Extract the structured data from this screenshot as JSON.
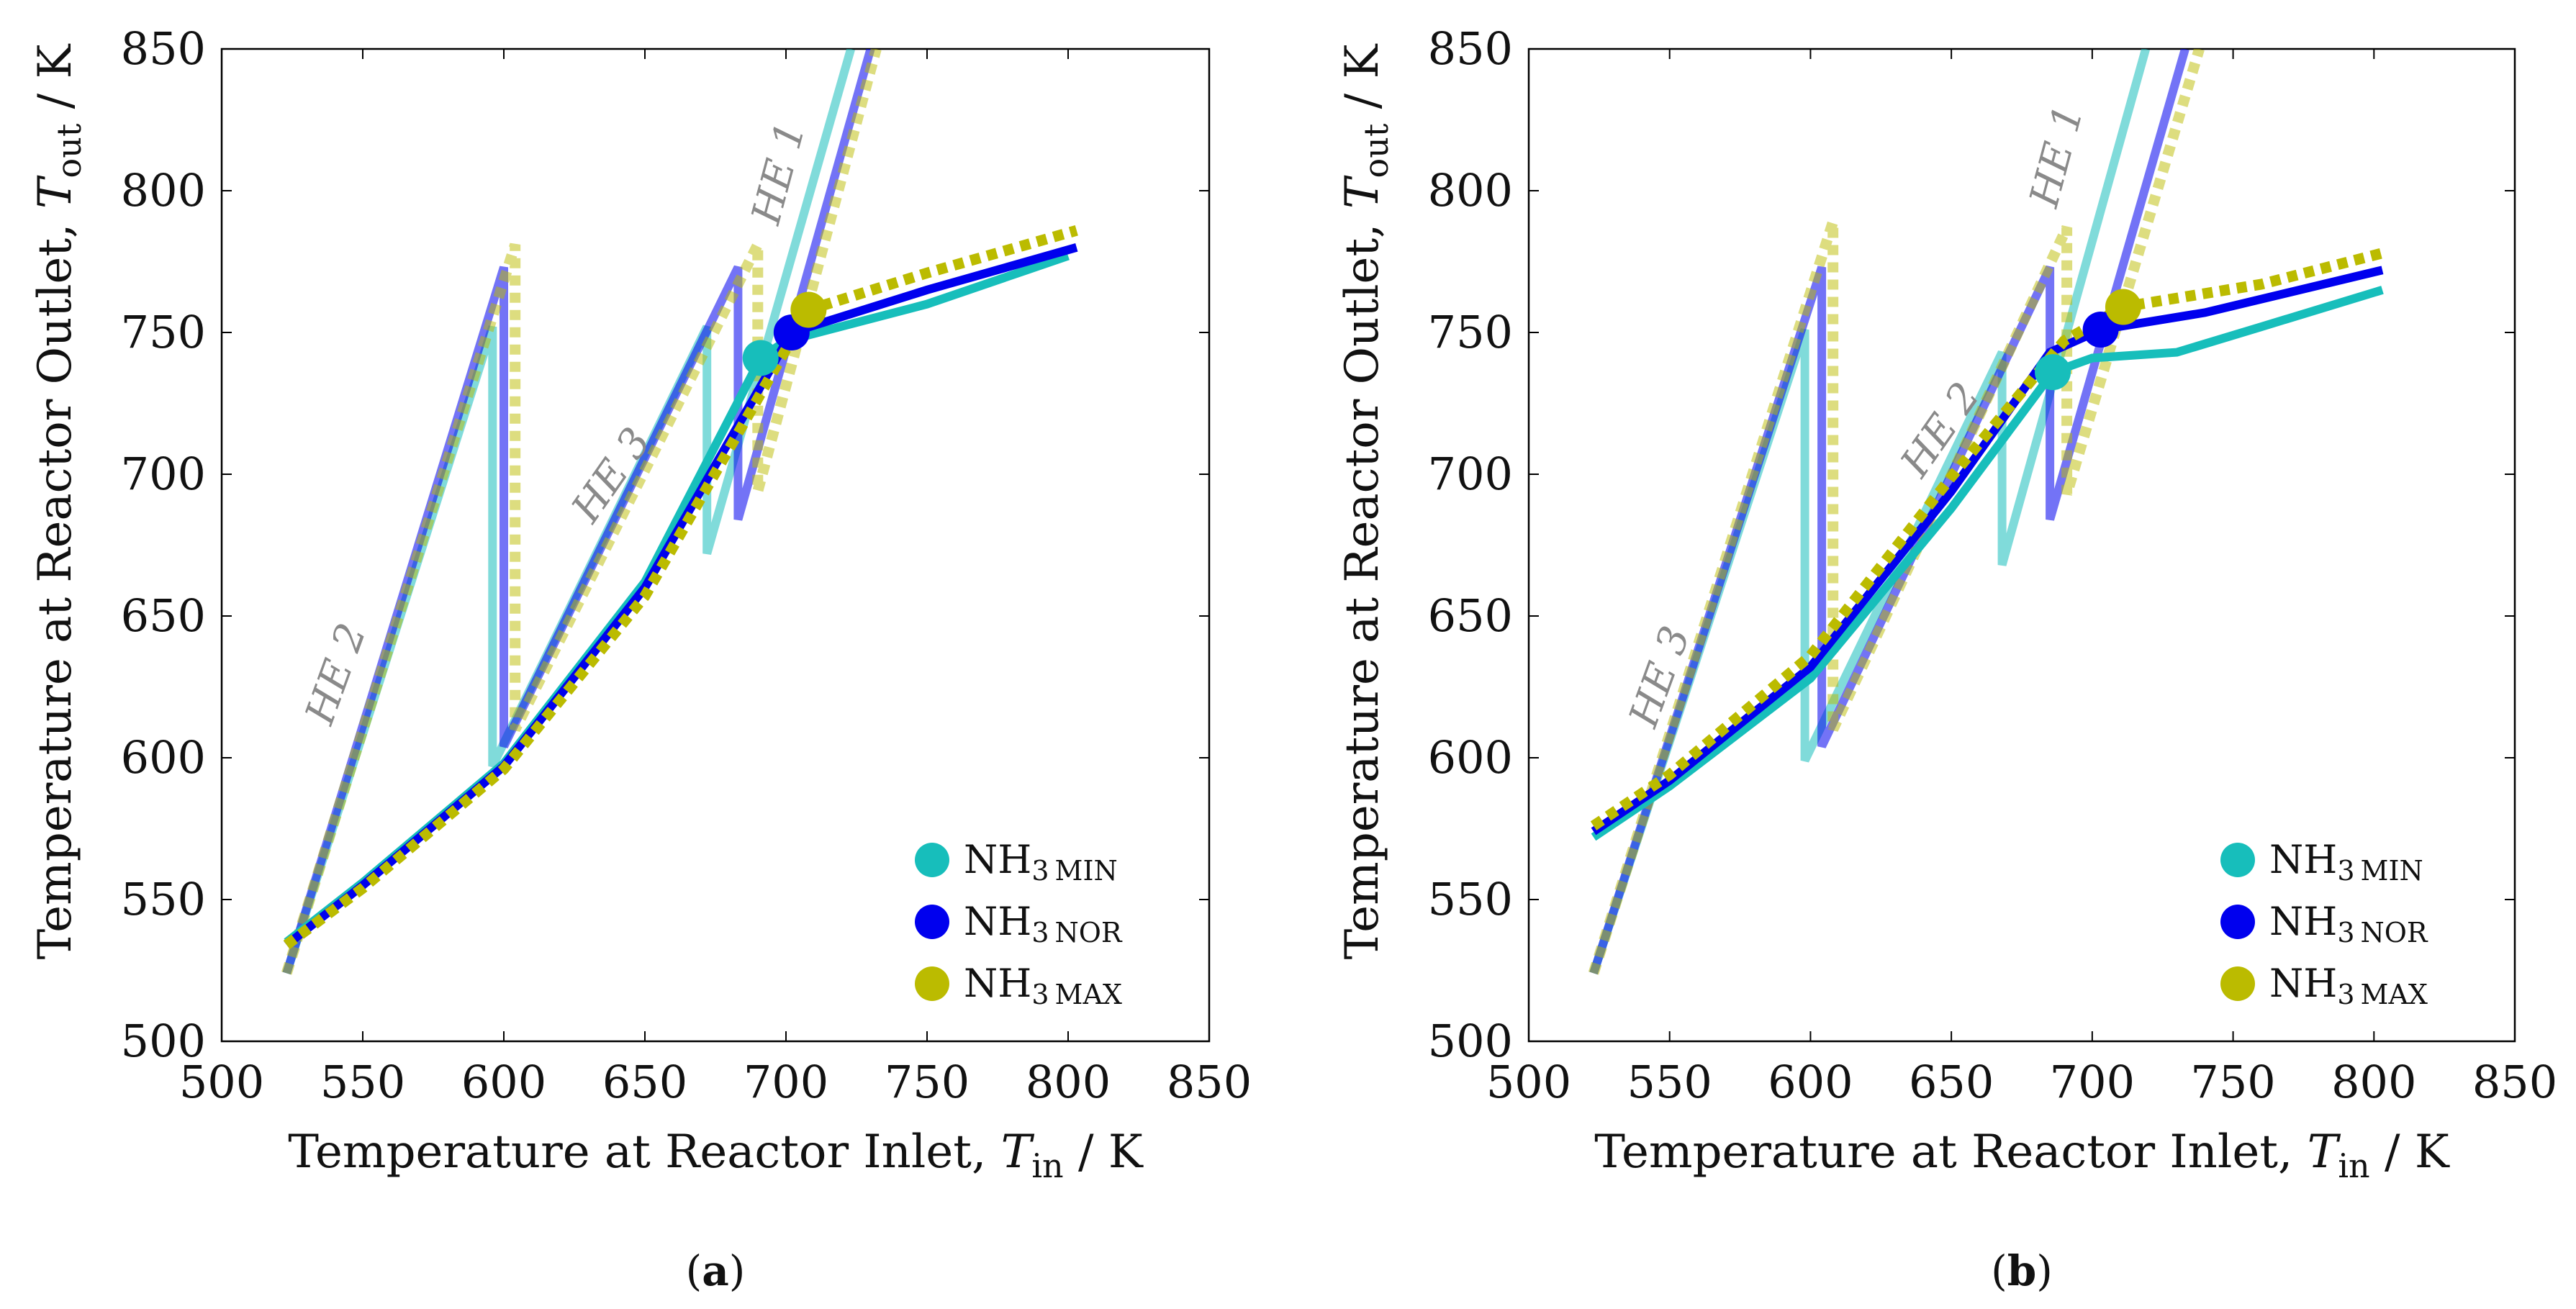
{
  "chart_data": [
    {
      "type": "line",
      "panel_label": "(a)",
      "xlabel": "Temperature at Reactor Inlet, T_in / K",
      "ylabel": "Temperature at Reactor Outlet, T_out / K",
      "xlabel_main": "Temperature at Reactor Inlet,",
      "xlabel_var": "T",
      "xlabel_sub": "in",
      "xlabel_unit": "/ K",
      "ylabel_main": "Temperature at Reactor Outlet,",
      "ylabel_var": "T",
      "ylabel_sub": "out",
      "ylabel_unit": "/ K",
      "xlim": [
        500,
        850
      ],
      "ylim": [
        500,
        850
      ],
      "xticks": [
        500,
        550,
        600,
        650,
        700,
        750,
        800,
        850
      ],
      "yticks": [
        500,
        550,
        600,
        650,
        700,
        750,
        800,
        850
      ],
      "legend": [
        "NH3 MIN",
        "NH3 NOR",
        "NH3 MAX"
      ],
      "legend_position": "bottom-right",
      "annotations": [
        {
          "text": "HE 2",
          "x": 545,
          "y": 628,
          "angle": -70
        },
        {
          "text": "HE 3",
          "x": 642,
          "y": 697,
          "angle": -55
        },
        {
          "text": "HE 1",
          "x": 702,
          "y": 805,
          "angle": -75
        }
      ],
      "series": [
        {
          "name": "NH3 MIN",
          "color": "#17bebb",
          "style": "solid",
          "role": "reactor",
          "x": [
            523,
            550,
            600,
            650,
            691,
            700,
            750,
            800
          ],
          "y": [
            535,
            556,
            598,
            662,
            741,
            747,
            760,
            777
          ]
        },
        {
          "name": "NH3 MIN",
          "color": "#17bebb",
          "style": "solid",
          "role": "exchanger",
          "x": [
            523,
            596,
            596,
            672,
            672,
            723
          ],
          "y": [
            524,
            752,
            597,
            752,
            672,
            850
          ]
        },
        {
          "name": "NH3 NOR",
          "color": "#0000ee",
          "style": "solid",
          "role": "reactor",
          "x": [
            523,
            550,
            600,
            650,
            702,
            750,
            803
          ],
          "y": [
            534,
            555,
            597,
            660,
            750,
            765,
            780
          ]
        },
        {
          "name": "NH3 NOR",
          "color": "#0000ee",
          "style": "solid",
          "role": "exchanger",
          "x": [
            523,
            600,
            600,
            683,
            683,
            730
          ],
          "y": [
            524,
            773,
            604,
            773,
            684,
            850
          ]
        },
        {
          "name": "NH3 MAX",
          "color": "#bbbb00",
          "style": "dotted",
          "role": "reactor",
          "x": [
            523,
            550,
            600,
            650,
            708,
            750,
            803
          ],
          "y": [
            534,
            554,
            596,
            657,
            758,
            771,
            786
          ]
        },
        {
          "name": "NH3 MAX",
          "color": "#bbbb00",
          "style": "dotted",
          "role": "exchanger",
          "x": [
            523,
            604,
            604,
            690,
            690,
            732
          ],
          "y": [
            524,
            781,
            610,
            781,
            694,
            850
          ]
        }
      ],
      "operating_points": [
        {
          "name": "NH3 MIN",
          "x": 691,
          "y": 741
        },
        {
          "name": "NH3 NOR",
          "x": 702,
          "y": 750
        },
        {
          "name": "NH3 MAX",
          "x": 708,
          "y": 758
        }
      ]
    },
    {
      "type": "line",
      "panel_label": "(b)",
      "xlabel": "Temperature at Reactor Inlet, T_in / K",
      "ylabel": "Temperature at Reactor Outlet, T_out / K",
      "xlabel_main": "Temperature at Reactor Inlet,",
      "xlabel_var": "T",
      "xlabel_sub": "in",
      "xlabel_unit": "/ K",
      "ylabel_main": "Temperature at Reactor Outlet,",
      "ylabel_var": "T",
      "ylabel_sub": "out",
      "ylabel_unit": "/ K",
      "xlim": [
        500,
        850
      ],
      "ylim": [
        500,
        850
      ],
      "xticks": [
        500,
        550,
        600,
        650,
        700,
        750,
        800,
        850
      ],
      "yticks": [
        500,
        550,
        600,
        650,
        700,
        750,
        800,
        850
      ],
      "legend": [
        "NH3 MIN",
        "NH3 NOR",
        "NH3 MAX"
      ],
      "legend_position": "bottom-right",
      "annotations": [
        {
          "text": "HE 3",
          "x": 551,
          "y": 627,
          "angle": -70
        },
        {
          "text": "HE 2",
          "x": 650,
          "y": 713,
          "angle": -55
        },
        {
          "text": "HE 1",
          "x": 692,
          "y": 811,
          "angle": -75
        }
      ],
      "series": [
        {
          "name": "NH3 MIN",
          "color": "#17bebb",
          "style": "solid",
          "role": "reactor",
          "x": [
            523,
            550,
            600,
            650,
            686,
            700,
            730,
            760,
            803
          ],
          "y": [
            572,
            590,
            628,
            688,
            736,
            741,
            743,
            752,
            765
          ]
        },
        {
          "name": "NH3 MIN",
          "color": "#17bebb",
          "style": "solid",
          "role": "exchanger",
          "x": [
            523,
            598,
            598,
            668,
            668,
            719
          ],
          "y": [
            524,
            751,
            599,
            743,
            668,
            850
          ]
        },
        {
          "name": "NH3 NOR",
          "color": "#0000ee",
          "style": "solid",
          "role": "reactor",
          "x": [
            523,
            550,
            600,
            650,
            685,
            703,
            740,
            803
          ],
          "y": [
            574,
            592,
            632,
            694,
            743,
            751,
            757,
            772
          ]
        },
        {
          "name": "NH3 NOR",
          "color": "#0000ee",
          "style": "solid",
          "role": "exchanger",
          "x": [
            523,
            604,
            604,
            685,
            685,
            733
          ],
          "y": [
            524,
            773,
            604,
            773,
            684,
            850
          ]
        },
        {
          "name": "NH3 MAX",
          "color": "#bbbb00",
          "style": "dotted",
          "role": "reactor",
          "x": [
            523,
            550,
            600,
            650,
            690,
            711,
            760,
            803
          ],
          "y": [
            576,
            594,
            636,
            699,
            747,
            759,
            767,
            778
          ]
        },
        {
          "name": "NH3 MAX",
          "color": "#bbbb00",
          "style": "dotted",
          "role": "exchanger",
          "x": [
            523,
            608,
            608,
            691,
            691,
            738
          ],
          "y": [
            524,
            789,
            610,
            787,
            693,
            850
          ]
        }
      ],
      "operating_points": [
        {
          "name": "NH3 MIN",
          "x": 686,
          "y": 736
        },
        {
          "name": "NH3 NOR",
          "x": 703,
          "y": 751
        },
        {
          "name": "NH3 MAX",
          "x": 711,
          "y": 759
        }
      ]
    }
  ]
}
